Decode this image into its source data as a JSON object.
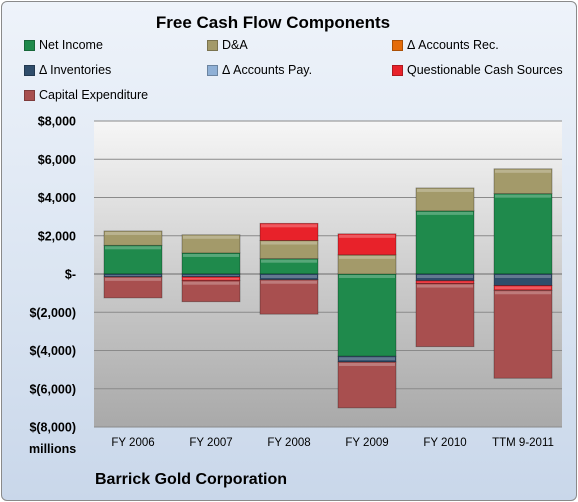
{
  "chart_data": {
    "type": "bar",
    "stacked": true,
    "title": "Free Cash Flow Components",
    "units_label": "millions",
    "footer": "Barrick Gold Corporation",
    "categories": [
      "FY 2006",
      "FY 2007",
      "FY 2008",
      "FY 2009",
      "FY 2010",
      "TTM 9-2011"
    ],
    "ylim": [
      -8000,
      8000
    ],
    "yticks": [
      8000,
      6000,
      4000,
      2000,
      0,
      -2000,
      -4000,
      -6000,
      -8000
    ],
    "ytick_labels": [
      "$8,000",
      "$6,000",
      "$4,000",
      "$2,000",
      "$-",
      "$(2,000)",
      "$(4,000)",
      "$(6,000)",
      "$(8,000)"
    ],
    "grid": true,
    "legend_position": "top",
    "series": [
      {
        "name": "Net Income",
        "color": "#1f8a4c",
        "values": [
          1500,
          1100,
          800,
          -4300,
          3300,
          4200
        ]
      },
      {
        "name": "D&A",
        "color": "#a39a6a",
        "values": [
          750,
          950,
          950,
          1000,
          1200,
          1300
        ]
      },
      {
        "name": "Δ Accounts Rec.",
        "color": "#e46c0a",
        "values": [
          0,
          0,
          0,
          0,
          0,
          0
        ]
      },
      {
        "name": "Δ Inventories",
        "color": "#2f4d6b",
        "values": [
          -150,
          -150,
          -300,
          -300,
          -350,
          -600
        ]
      },
      {
        "name": "Δ Accounts Pay.",
        "color": "#8fb0d6",
        "values": [
          0,
          0,
          0,
          0,
          0,
          0
        ]
      },
      {
        "name": "Questionable Cash Sources",
        "color": "#e8222a",
        "values": [
          0,
          -200,
          900,
          1100,
          -150,
          -250
        ]
      },
      {
        "name": "Capital Expenditure",
        "color": "#a84f4f",
        "values": [
          -1100,
          -1100,
          -1800,
          -2400,
          -3300,
          -4600
        ]
      }
    ]
  }
}
